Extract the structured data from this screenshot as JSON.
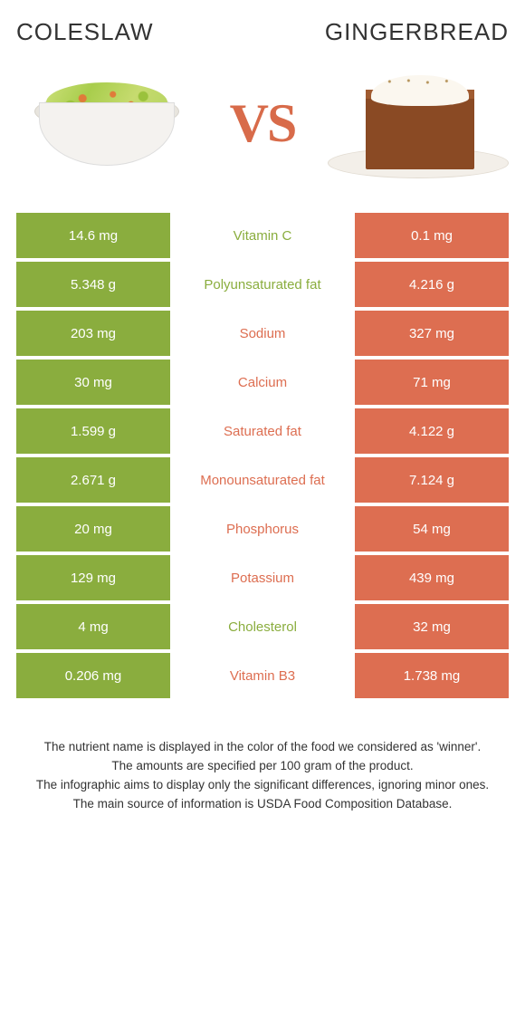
{
  "titles": {
    "left": "COLESLAW",
    "right": "GINGERBREAD"
  },
  "vs": "VS",
  "colors": {
    "left": "#8aad3e",
    "right": "#dd6e51",
    "mid_bg": "#ffffff",
    "vs": "#d86b4a"
  },
  "rows": [
    {
      "left": "14.6 mg",
      "label": "Vitamin C",
      "right": "0.1 mg",
      "winner": "left"
    },
    {
      "left": "5.348 g",
      "label": "Polyunsaturated fat",
      "right": "4.216 g",
      "winner": "left"
    },
    {
      "left": "203 mg",
      "label": "Sodium",
      "right": "327 mg",
      "winner": "right"
    },
    {
      "left": "30 mg",
      "label": "Calcium",
      "right": "71 mg",
      "winner": "right"
    },
    {
      "left": "1.599 g",
      "label": "Saturated fat",
      "right": "4.122 g",
      "winner": "right"
    },
    {
      "left": "2.671 g",
      "label": "Monounsaturated fat",
      "right": "7.124 g",
      "winner": "right"
    },
    {
      "left": "20 mg",
      "label": "Phosphorus",
      "right": "54 mg",
      "winner": "right"
    },
    {
      "left": "129 mg",
      "label": "Potassium",
      "right": "439 mg",
      "winner": "right"
    },
    {
      "left": "4 mg",
      "label": "Cholesterol",
      "right": "32 mg",
      "winner": "left"
    },
    {
      "left": "0.206 mg",
      "label": "Vitamin B3",
      "right": "1.738 mg",
      "winner": "right"
    }
  ],
  "footer": [
    "The nutrient name is displayed in the color of the food we considered as 'winner'.",
    "The amounts are specified per 100 gram of the product.",
    "The infographic aims to display only the significant differences, ignoring minor ones.",
    "The main source of information is USDA Food Composition Database."
  ]
}
